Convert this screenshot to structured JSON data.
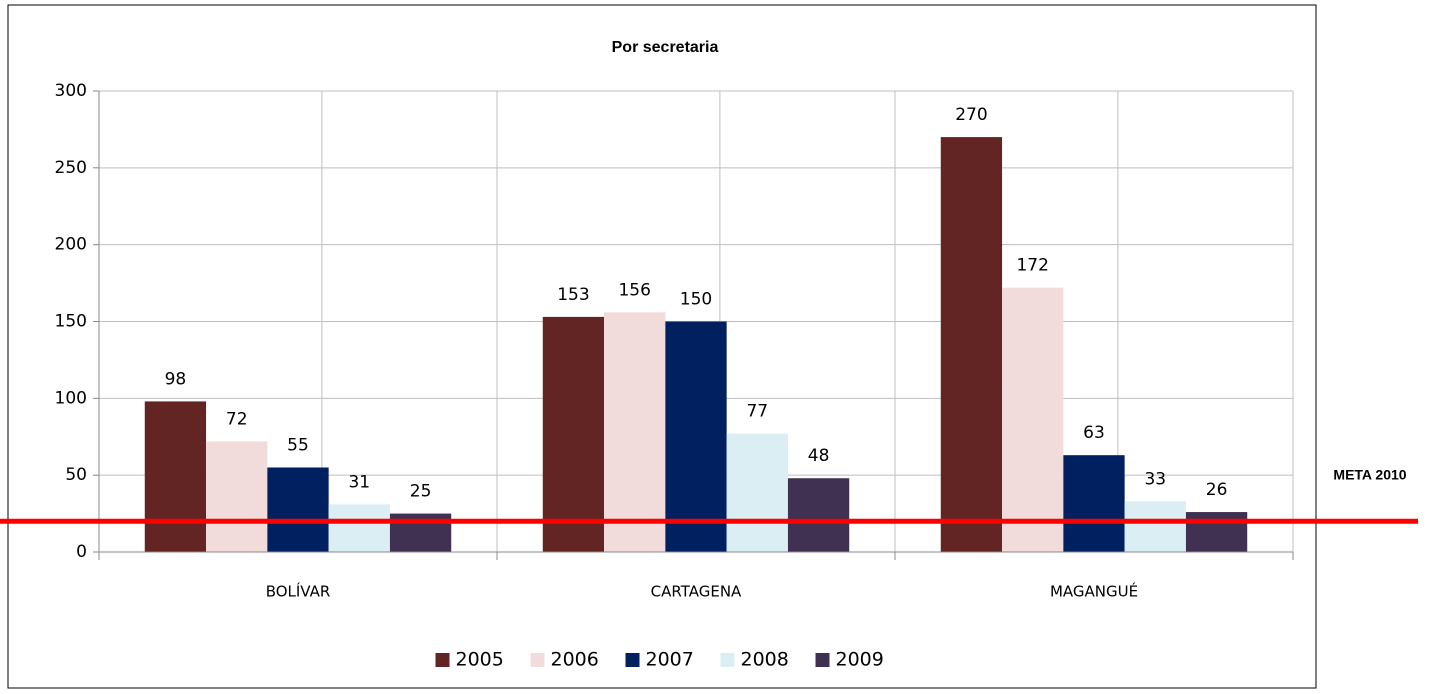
{
  "chart_data": {
    "type": "bar",
    "title": "Por secretaria",
    "categories": [
      "BOLÍVAR",
      "CARTAGENA",
      "MAGANGUÉ"
    ],
    "series": [
      {
        "name": "2005",
        "color": "#632523",
        "values": [
          98,
          153,
          270
        ]
      },
      {
        "name": "2006",
        "color": "#f2dcdb",
        "values": [
          72,
          156,
          172
        ]
      },
      {
        "name": "2007",
        "color": "#002060",
        "values": [
          55,
          150,
          63
        ]
      },
      {
        "name": "2008",
        "color": "#dbeef4",
        "values": [
          31,
          77,
          33
        ]
      },
      {
        "name": "2009",
        "color": "#403152",
        "values": [
          25,
          48,
          26
        ]
      }
    ],
    "ylim": [
      0,
      300
    ],
    "yticks": [
      0,
      50,
      100,
      150,
      200,
      250,
      300
    ],
    "grid": true,
    "legend": "bottom",
    "target": {
      "label": "META 2010",
      "value": 20,
      "color": "#ff0000"
    }
  }
}
